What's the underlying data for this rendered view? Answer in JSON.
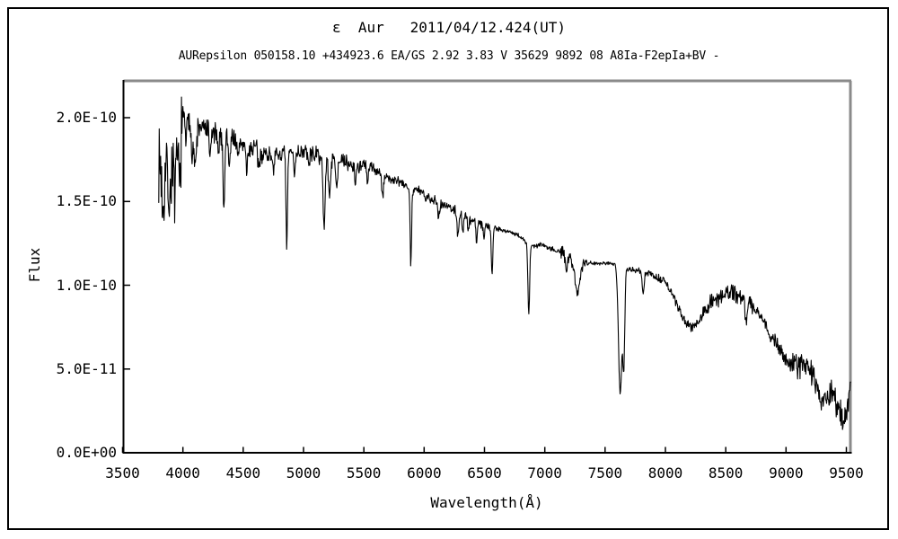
{
  "header": {
    "title": "ε  Aur   2011/04/12.424(UT)",
    "subtitle": "AURepsilon 050158.10 +434923.6 EA/GS 2.92 3.83 V 35629 9892 08 A8Ia-F2epIa+BV -"
  },
  "chart_data": {
    "type": "line",
    "title": "ε  Aur   2011/04/12.424(UT)",
    "subtitle": "AURepsilon 050158.10 +434923.6 EA/GS 2.92 3.83 V 35629 9892 08 A8Ia-F2epIa+BV -",
    "xlabel": "Wavelength(Å)",
    "ylabel": "Flux",
    "grid": false,
    "legend": false,
    "line_color": "#000000",
    "frame_shadow_color": "#8a8a8a",
    "xlim": [
      3500,
      9537
    ],
    "ylim": [
      0,
      2.22e-10
    ],
    "x_ticks": {
      "values": [
        3500,
        4000,
        4500,
        5000,
        5500,
        6000,
        6500,
        7000,
        7500,
        8000,
        8500,
        9000,
        9500
      ],
      "labels": [
        "3500",
        "4000",
        "4500",
        "5000",
        "5500",
        "6000",
        "6500",
        "7000",
        "7500",
        "8000",
        "8500",
        "9000",
        "9500"
      ]
    },
    "y_ticks": {
      "values_1e11": [
        0,
        5,
        10,
        15,
        20
      ],
      "labels": [
        "0.0E+00",
        "5.0E-11",
        "1.0E-10",
        "1.5E-10",
        "2.0E-10"
      ]
    },
    "flux_unit_note": "all flux values below are in units of 1e-11 (so 17.4 means 1.74e-10)",
    "wavelength_range_of_data": [
      3800,
      9536
    ],
    "sampling_step_angstrom": 4,
    "noise_seed": 7,
    "continuum_points": [
      [
        3800,
        17.4
      ],
      [
        3850,
        16.9
      ],
      [
        3900,
        17.3
      ],
      [
        3950,
        18.0
      ],
      [
        4000,
        20.0
      ],
      [
        4045,
        19.6
      ],
      [
        4120,
        19.4
      ],
      [
        4200,
        19.3
      ],
      [
        4300,
        18.9
      ],
      [
        4400,
        18.9
      ],
      [
        4500,
        18.4
      ],
      [
        4600,
        18.1
      ],
      [
        4700,
        17.8
      ],
      [
        4800,
        17.8
      ],
      [
        4900,
        17.9
      ],
      [
        5000,
        18.0
      ],
      [
        5100,
        17.8
      ],
      [
        5200,
        17.5
      ],
      [
        5300,
        17.4
      ],
      [
        5400,
        17.2
      ],
      [
        5500,
        17.1
      ],
      [
        5600,
        16.9
      ],
      [
        5700,
        16.4
      ],
      [
        5800,
        16.1
      ],
      [
        5900,
        15.8
      ],
      [
        6000,
        15.5
      ],
      [
        6100,
        15.0
      ],
      [
        6200,
        14.7
      ],
      [
        6300,
        14.3
      ],
      [
        6400,
        13.9
      ],
      [
        6500,
        13.6
      ],
      [
        6600,
        13.4
      ],
      [
        6700,
        13.2
      ],
      [
        6800,
        12.9
      ],
      [
        6880,
        12.3
      ],
      [
        6980,
        12.45
      ],
      [
        7050,
        12.2
      ],
      [
        7130,
        12.0
      ],
      [
        7250,
        11.5
      ],
      [
        7400,
        11.3
      ],
      [
        7550,
        11.35
      ],
      [
        7700,
        10.9
      ],
      [
        7800,
        10.9
      ],
      [
        7900,
        10.6
      ],
      [
        8000,
        10.2
      ],
      [
        8060,
        9.4
      ],
      [
        8120,
        8.4
      ],
      [
        8170,
        7.8
      ],
      [
        8210,
        7.5
      ],
      [
        8260,
        7.7
      ],
      [
        8320,
        8.5
      ],
      [
        8400,
        9.1
      ],
      [
        8480,
        9.5
      ],
      [
        8560,
        9.6
      ],
      [
        8630,
        9.3
      ],
      [
        8700,
        9.0
      ],
      [
        8780,
        8.3
      ],
      [
        8860,
        7.2
      ],
      [
        8940,
        6.2
      ],
      [
        9000,
        5.6
      ],
      [
        9040,
        5.3
      ],
      [
        9150,
        5.2
      ],
      [
        9230,
        4.6
      ],
      [
        9300,
        2.9
      ],
      [
        9355,
        3.3
      ],
      [
        9390,
        3.9
      ],
      [
        9420,
        2.6
      ],
      [
        9460,
        2.2
      ],
      [
        9490,
        2.0
      ],
      [
        9515,
        3.0
      ],
      [
        9537,
        4.5
      ]
    ],
    "absorption_lines": {
      "columns": [
        "center_angstrom",
        "depth_1e11",
        "sigma_angstrom"
      ],
      "rows": [
        [
          3835,
          2.6,
          8
        ],
        [
          3890,
          2.6,
          8
        ],
        [
          3935,
          3.0,
          8
        ],
        [
          3972,
          3.0,
          8
        ],
        [
          4026,
          1.0,
          6
        ],
        [
          4078,
          1.5,
          6
        ],
        [
          4102,
          2.6,
          9
        ],
        [
          4226,
          1.6,
          7
        ],
        [
          4290,
          1.2,
          6
        ],
        [
          4340,
          4.2,
          7
        ],
        [
          4385,
          1.8,
          7
        ],
        [
          4455,
          1.4,
          6
        ],
        [
          4530,
          1.5,
          8
        ],
        [
          4630,
          1.2,
          7
        ],
        [
          4755,
          1.0,
          6
        ],
        [
          4861,
          5.9,
          6
        ],
        [
          4925,
          1.3,
          6
        ],
        [
          5045,
          0.9,
          6
        ],
        [
          5170,
          4.4,
          8
        ],
        [
          5215,
          2.4,
          7
        ],
        [
          5275,
          1.6,
          6
        ],
        [
          5430,
          1.1,
          6
        ],
        [
          5530,
          1.0,
          6
        ],
        [
          5655,
          1.5,
          7
        ],
        [
          5890,
          4.6,
          6
        ],
        [
          6010,
          0.6,
          6
        ],
        [
          6120,
          0.8,
          7
        ],
        [
          6280,
          1.3,
          8
        ],
        [
          6320,
          1.1,
          6
        ],
        [
          6365,
          0.9,
          6
        ],
        [
          6435,
          1.1,
          6
        ],
        [
          6495,
          0.8,
          6
        ],
        [
          6563,
          2.9,
          6
        ],
        [
          6867,
          4.2,
          7
        ],
        [
          7180,
          0.8,
          12
        ],
        [
          7270,
          2.1,
          18
        ],
        [
          7625,
          7.6,
          14
        ],
        [
          7655,
          5.5,
          8
        ],
        [
          7815,
          1.4,
          9
        ],
        [
          8670,
          1.2,
          9
        ]
      ]
    },
    "noise_segments": {
      "columns": [
        "from_angstrom",
        "to_angstrom",
        "amplitude_1e11"
      ],
      "rows": [
        [
          3800,
          3995,
          2.1
        ],
        [
          3995,
          4150,
          0.85
        ],
        [
          4150,
          4700,
          0.7
        ],
        [
          4700,
          5600,
          0.45
        ],
        [
          5600,
          6550,
          0.3
        ],
        [
          6550,
          7130,
          0.15
        ],
        [
          7130,
          7360,
          0.4
        ],
        [
          7360,
          7600,
          0.12
        ],
        [
          7600,
          7900,
          0.18
        ],
        [
          7900,
          8300,
          0.25
        ],
        [
          8300,
          8700,
          0.5
        ],
        [
          8700,
          9040,
          0.5
        ],
        [
          9040,
          9250,
          0.8
        ],
        [
          9250,
          9537,
          0.75
        ]
      ]
    }
  }
}
